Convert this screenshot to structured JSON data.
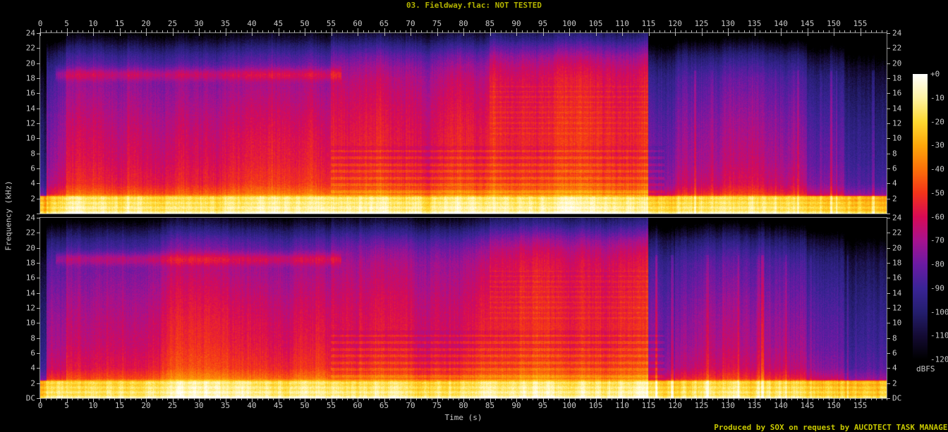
{
  "title": {
    "text": "03. Fieldway.flac: NOT TESTED",
    "color": "#b4b400"
  },
  "footer": {
    "text": "Produced by SOX on request by AUCDTECT TASK MANAGER",
    "color": "#c8c800"
  },
  "axes": {
    "time": {
      "label": "Time (s)",
      "tick_labels": [
        0,
        5,
        10,
        15,
        20,
        25,
        30,
        35,
        40,
        45,
        50,
        55,
        60,
        65,
        70,
        75,
        80,
        85,
        90,
        95,
        100,
        105,
        110,
        115,
        120,
        125,
        130,
        135,
        140,
        145,
        150,
        155
      ],
      "minor_step_s": 1,
      "axis_color": "#b8b8b8",
      "label_color": "#c8c8c8"
    },
    "frequency": {
      "label": "Frequency (kHz)",
      "tick_labels_khz": [
        24,
        22,
        20,
        18,
        16,
        14,
        12,
        10,
        8,
        6,
        4,
        2
      ],
      "dc_label": "DC",
      "max_khz": 24,
      "label_color": "#c8c8c8"
    }
  },
  "colorbar": {
    "unit": "dBFS",
    "tick_labels": [
      "+0",
      "-10",
      "-20",
      "-30",
      "-40",
      "-50",
      "-60",
      "-70",
      "-80",
      "-90",
      "-100",
      "-110",
      "-120"
    ],
    "db_max": 0,
    "db_min": -120
  },
  "chart_data": {
    "type": "heatmap",
    "subtype": "stereo-audio-spectrogram",
    "channels": 2,
    "duration_s": 160,
    "freq_range_khz": [
      0,
      24
    ],
    "db_range": [
      -120,
      0
    ],
    "palette_stops": [
      [
        -120,
        "#000000"
      ],
      [
        -110,
        "#140b34"
      ],
      [
        -100,
        "#241e6e"
      ],
      [
        -90,
        "#3a2496"
      ],
      [
        -80,
        "#6b1aa3"
      ],
      [
        -70,
        "#a7128e"
      ],
      [
        -60,
        "#d80a54"
      ],
      [
        -50,
        "#f43419"
      ],
      [
        -40,
        "#fb7109"
      ],
      [
        -30,
        "#fda70a"
      ],
      [
        -20,
        "#fed931"
      ],
      [
        -10,
        "#fff3a3"
      ],
      [
        0,
        "#ffffff"
      ]
    ],
    "freq_profile_db": [
      [
        0,
        -8
      ],
      [
        0.4,
        -10
      ],
      [
        2.2,
        -16
      ],
      [
        2.6,
        -34
      ],
      [
        4,
        -45
      ],
      [
        7,
        -51
      ],
      [
        10,
        -54
      ],
      [
        13,
        -58
      ],
      [
        16,
        -63
      ],
      [
        18,
        -67
      ],
      [
        19.5,
        -73
      ],
      [
        21,
        -82
      ],
      [
        22.3,
        -94
      ],
      [
        23.2,
        -104
      ],
      [
        24,
        -112
      ]
    ],
    "time_segments_db_offset": [
      [
        0,
        1.2,
        -45
      ],
      [
        1.2,
        5,
        -18
      ],
      [
        5,
        23,
        -9
      ],
      [
        23,
        55,
        -6
      ],
      [
        55,
        85,
        -3
      ],
      [
        85,
        115,
        0
      ],
      [
        115,
        120,
        -26
      ],
      [
        120,
        129,
        -19
      ],
      [
        129,
        137,
        -15
      ],
      [
        137,
        145,
        -20
      ],
      [
        145,
        152,
        -28
      ],
      [
        152,
        160,
        -40
      ]
    ],
    "hf_boost_segments": [
      [
        55,
        85,
        4
      ],
      [
        85,
        115,
        10
      ]
    ],
    "features": {
      "hiss_band": {
        "time_s": [
          3,
          57
        ],
        "center_khz": 18.5,
        "sigma_khz": 0.8,
        "gain_db": 14
      },
      "low_band_khz": 2.3,
      "low_band_seg_scale": 0.35,
      "harmonic_stripes_zone1_s": [
        55,
        118
      ],
      "harmonic_stripes_zone2_s": [
        85,
        115
      ],
      "noise_db": 7
    }
  }
}
